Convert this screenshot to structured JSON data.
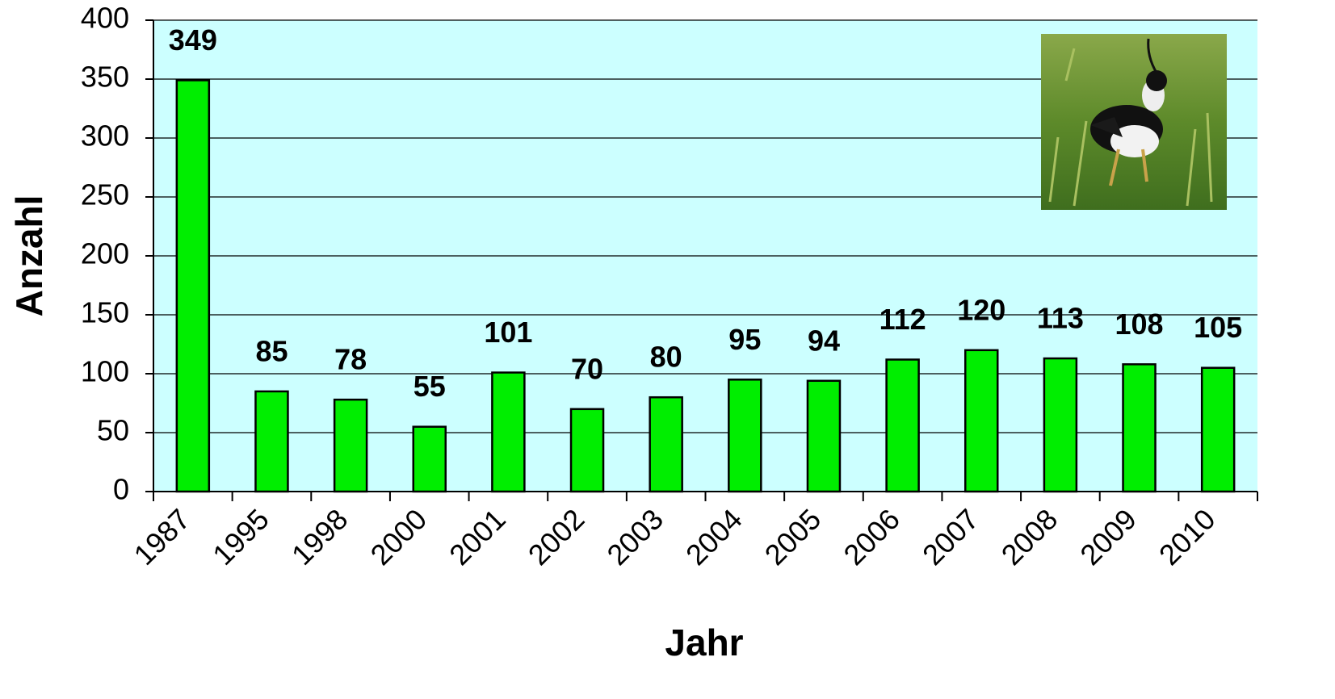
{
  "chart_data": {
    "type": "bar",
    "x_label": "Jahr",
    "y_label": "Anzahl",
    "categories": [
      "1987",
      "1995",
      "1998",
      "2000",
      "2001",
      "2002",
      "2003",
      "2004",
      "2005",
      "2006",
      "2007",
      "2008",
      "2009",
      "2010"
    ],
    "values": [
      349,
      85,
      78,
      55,
      101,
      70,
      80,
      95,
      94,
      112,
      120,
      113,
      108,
      105
    ],
    "color": "#00ee00",
    "ylim": [
      0,
      400
    ],
    "yticks": [
      0,
      50,
      100,
      150,
      200,
      250,
      300,
      350,
      400
    ],
    "grid": true
  }
}
